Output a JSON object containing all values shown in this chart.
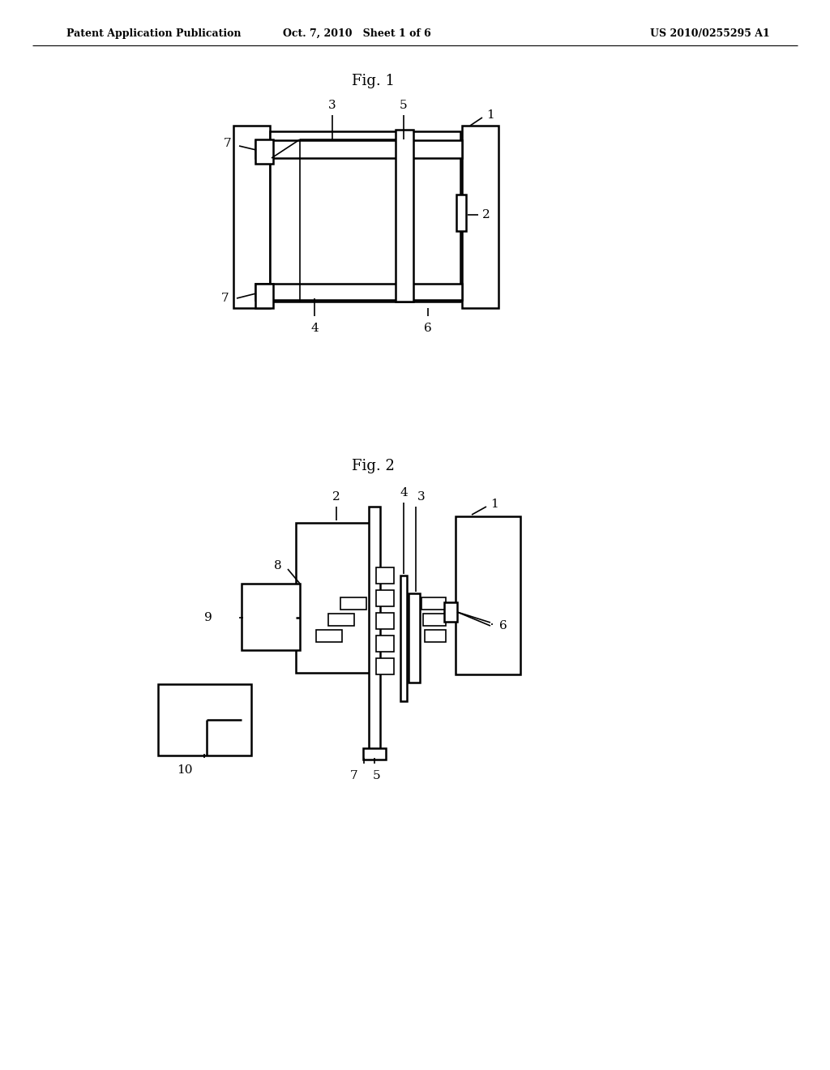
{
  "background_color": "#ffffff",
  "header_left": "Patent Application Publication",
  "header_mid": "Oct. 7, 2010   Sheet 1 of 6",
  "header_right": "US 2010/0255295 A1",
  "fig1_title": "Fig. 1",
  "fig2_title": "Fig. 2",
  "line_color": "#000000",
  "line_width": 1.8
}
